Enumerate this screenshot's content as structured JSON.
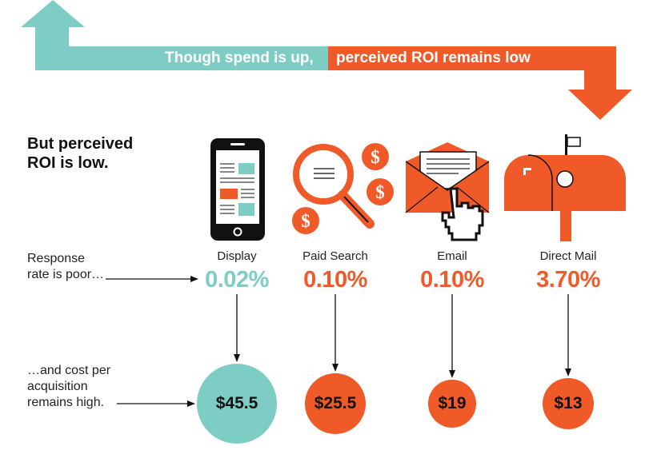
{
  "banner": {
    "left_text": "Though spend is up,",
    "right_text": "perceived ROI remains low",
    "colors": {
      "teal": "#7ecdc4",
      "orange": "#f05a28"
    }
  },
  "heading": {
    "line1": "But perceived",
    "line2": "ROI is low."
  },
  "row_labels": {
    "response_line1": "Response",
    "response_line2": "rate is poor…",
    "cost_line1": "…and cost per",
    "cost_line2": "acquisition",
    "cost_line3": "remains high."
  },
  "channels": [
    {
      "name": "Display",
      "icon": "smartphone-icon",
      "response_rate": "0.02%",
      "cost": "$45.5",
      "color": "#7ecdc4"
    },
    {
      "name": "Paid Search",
      "icon": "magnifier-dollar-icon",
      "response_rate": "0.10%",
      "cost": "$25.5",
      "color": "#f05a28"
    },
    {
      "name": "Email",
      "icon": "envelope-cursor-icon",
      "response_rate": "0.10%",
      "cost": "$19",
      "color": "#f05a28"
    },
    {
      "name": "Direct Mail",
      "icon": "mailbox-icon",
      "response_rate": "3.70%",
      "cost": "$13",
      "color": "#f05a28"
    }
  ]
}
